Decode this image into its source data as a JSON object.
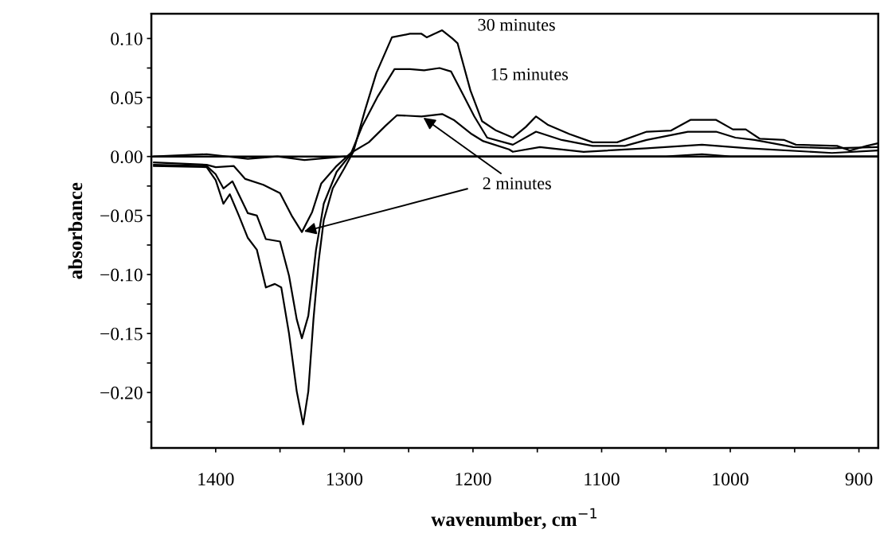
{
  "chart_data": {
    "type": "line",
    "xlabel": "wavenumber, cm$^{−1}$",
    "ylabel": "absorbance",
    "xlim": [
      1450,
      885
    ],
    "ylim": [
      -0.247,
      0.121
    ],
    "xticks": [
      1400,
      {
        "value": 1350,
        "label": null
      },
      1300,
      {
        "value": 1250,
        "label": null
      },
      1200,
      {
        "value": 1150,
        "label": null
      },
      1100,
      {
        "value": 1050,
        "label": null
      },
      1000,
      {
        "value": 950,
        "label": null
      },
      900
    ],
    "yticks": [
      {
        "value": 0.1,
        "label": "0.10"
      },
      {
        "value": 0.075,
        "label": null
      },
      {
        "value": 0.05,
        "label": "0.05"
      },
      {
        "value": 0.025,
        "label": null
      },
      {
        "value": 0,
        "label": "0.00"
      },
      {
        "value": -0.025,
        "label": null
      },
      {
        "value": -0.05,
        "label": "−0.05"
      },
      {
        "value": -0.075,
        "label": null
      },
      {
        "value": -0.1,
        "label": "−0.10"
      },
      {
        "value": -0.125,
        "label": null
      },
      {
        "value": -0.15,
        "label": "−0.15"
      },
      {
        "value": -0.175,
        "label": null
      },
      {
        "value": -0.2,
        "label": "−0.20"
      },
      {
        "value": -0.225,
        "label": null
      }
    ],
    "grid": false,
    "legend": false,
    "marker": "none",
    "line_style": "solid",
    "ref_lines": [
      {
        "axis": "y",
        "value": 0,
        "color": "#000000"
      }
    ],
    "series": [
      {
        "color": "#000000",
        "x": [
          1448,
          1407,
          1400,
          1394,
          1389,
          1382,
          1375,
          1368,
          1361,
          1354,
          1349,
          1343,
          1337,
          1332,
          1328,
          1324,
          1320,
          1316,
          1309,
          1300,
          1293,
          1284,
          1275,
          1263,
          1249,
          1240,
          1236,
          1224,
          1216,
          1212,
          1202,
          1193,
          1182,
          1169,
          1159,
          1151,
          1142,
          1125,
          1107,
          1088,
          1065,
          1046,
          1031,
          1011,
          998,
          988,
          977,
          958,
          949,
          917,
          907,
          894,
          886
        ],
        "values": [
          -0.008,
          -0.009,
          -0.02,
          -0.04,
          -0.032,
          -0.05,
          -0.069,
          -0.079,
          -0.111,
          -0.108,
          -0.111,
          -0.15,
          -0.199,
          -0.227,
          -0.199,
          -0.138,
          -0.089,
          -0.054,
          -0.027,
          -0.01,
          0.004,
          0.039,
          0.071,
          0.101,
          0.104,
          0.104,
          0.101,
          0.107,
          0.1,
          0.096,
          0.056,
          0.03,
          0.022,
          0.016,
          0.025,
          0.034,
          0.027,
          0.019,
          0.012,
          0.012,
          0.021,
          0.022,
          0.031,
          0.031,
          0.023,
          0.023,
          0.015,
          0.014,
          0.01,
          0.009,
          0.005,
          0.009,
          0.011
        ]
      },
      {
        "color": "#000000",
        "x": [
          1448,
          1407,
          1400,
          1394,
          1387,
          1375,
          1368,
          1361,
          1350,
          1343,
          1337,
          1333,
          1328,
          1322,
          1316,
          1306,
          1295,
          1286,
          1274,
          1261,
          1249,
          1238,
          1226,
          1217,
          1208,
          1199,
          1189,
          1169,
          1151,
          1131,
          1107,
          1082,
          1065,
          1033,
          1011,
          996,
          981,
          951,
          921,
          886
        ],
        "values": [
          -0.007,
          -0.008,
          -0.015,
          -0.027,
          -0.021,
          -0.048,
          -0.05,
          -0.07,
          -0.072,
          -0.101,
          -0.138,
          -0.154,
          -0.135,
          -0.079,
          -0.04,
          -0.013,
          0.002,
          0.026,
          0.051,
          0.074,
          0.074,
          0.073,
          0.075,
          0.072,
          0.053,
          0.034,
          0.016,
          0.01,
          0.021,
          0.014,
          0.009,
          0.009,
          0.014,
          0.021,
          0.021,
          0.016,
          0.014,
          0.008,
          0.007,
          0.008
        ]
      },
      {
        "color": "#000000",
        "x": [
          1448,
          1407,
          1400,
          1386,
          1377,
          1363,
          1350,
          1341,
          1333,
          1325,
          1318,
          1306,
          1295,
          1281,
          1268,
          1259,
          1240,
          1224,
          1215,
          1201,
          1192,
          1172,
          1169,
          1148,
          1114,
          1065,
          1022,
          986,
          921,
          886
        ],
        "values": [
          -0.005,
          -0.007,
          -0.009,
          -0.008,
          -0.019,
          -0.024,
          -0.031,
          -0.05,
          -0.064,
          -0.047,
          -0.023,
          -0.008,
          0.003,
          0.012,
          0.026,
          0.035,
          0.034,
          0.036,
          0.031,
          0.019,
          0.013,
          0.006,
          0.004,
          0.008,
          0.004,
          0.007,
          0.01,
          0.007,
          0.003,
          0.005
        ]
      },
      {
        "color": "#000000",
        "x": [
          1448,
          1407,
          1375,
          1352,
          1331,
          1300,
          1250,
          1200,
          1150,
          1100,
          1050,
          1022,
          1000,
          950,
          886
        ],
        "values": [
          0.0,
          0.002,
          -0.002,
          0.0,
          -0.003,
          0.0,
          0.0,
          0.0,
          0.0,
          0.0,
          0.0,
          0.002,
          0.0,
          0.0,
          0.0
        ]
      }
    ],
    "annotations": [
      {
        "text": "30 minutes",
        "x": 1212,
        "y": 0.096
      },
      {
        "text": "15 minutes",
        "x": 1202,
        "y": 0.056
      },
      {
        "text": "2 minutes",
        "x": 1240,
        "y": 0.034
      }
    ]
  }
}
